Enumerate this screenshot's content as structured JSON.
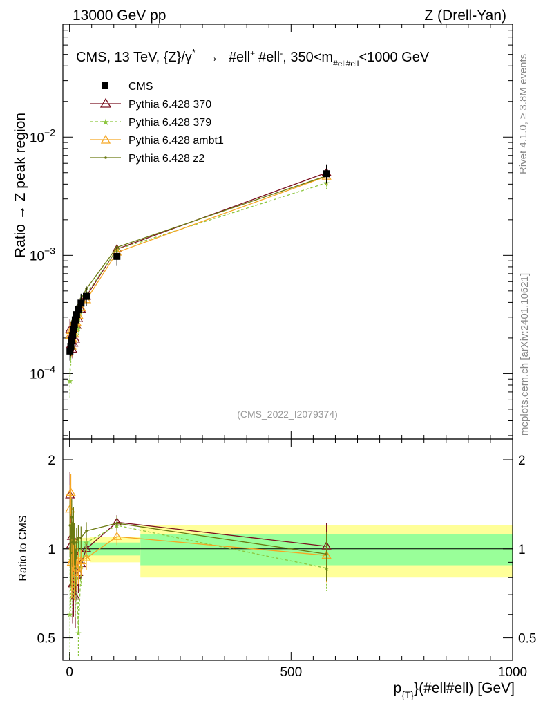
{
  "header": {
    "left": "13000 GeV pp",
    "right": "Z (Drell-Yan)"
  },
  "side": {
    "rivet": "Rivet 4.1.0, ≥ 3.8M events",
    "mcplots": "mcplots.cern.ch [arXiv:2401.10621]"
  },
  "chart_data": {
    "type": "scatter",
    "title": "CMS, 13 TeV, {Z}/γ* → #ell⁺ #ell⁻, 350<m#ell#ell<1000 GeV",
    "title_parts": {
      "lead": "CMS, 13 TeV, {Z}/γ",
      "star": "*",
      "arrow": "→",
      "lep1": "#ell",
      "plus": "+",
      "lep2": "#ell",
      "minus": "-",
      "cut_a": ", 350<m",
      "cut_sub": "#ell#ell",
      "cut_b": "<1000 GeV"
    },
    "analysis_id": "(CMS_2022_I2079374)",
    "ylabel": "Ratio → Z peak region",
    "ratio_ylabel": "Ratio to CMS",
    "xlabel": "p_{T}(#ell#ell) [GeV]",
    "xlabel_parts": {
      "p": "p",
      "sub": "{T}",
      "rest": "}(#ell#ell) [GeV]"
    },
    "xlim": [
      -15,
      1000
    ],
    "ylim": [
      2.8e-05,
      0.09
    ],
    "ratio_ylim": [
      0.42,
      2.35
    ],
    "x_ticks": [
      "0",
      "500",
      "1000"
    ],
    "y_ticks": [
      {
        "base": "10",
        "exp": "−4",
        "value": 0.0001
      },
      {
        "base": "10",
        "exp": "−3",
        "value": 0.001
      },
      {
        "base": "10",
        "exp": "−2",
        "value": 0.01
      }
    ],
    "ratio_ticks": [
      {
        "label": "0.5",
        "value": 0.5
      },
      {
        "label": "1",
        "value": 1
      },
      {
        "label": "2",
        "value": 2
      }
    ],
    "data": {
      "name": "CMS",
      "color": "#000000",
      "points": [
        {
          "x": 1,
          "y": 0.000155
        },
        {
          "x": 3,
          "y": 0.00017
        },
        {
          "x": 5,
          "y": 0.00019
        },
        {
          "x": 7,
          "y": 0.00021
        },
        {
          "x": 9,
          "y": 0.000235
        },
        {
          "x": 11,
          "y": 0.00026
        },
        {
          "x": 13,
          "y": 0.000285
        },
        {
          "x": 16,
          "y": 0.000315
        },
        {
          "x": 20,
          "y": 0.00035
        },
        {
          "x": 26,
          "y": 0.000395
        },
        {
          "x": 38,
          "y": 0.00045
        },
        {
          "x": 107,
          "y": 0.00098
        },
        {
          "x": 580,
          "y": 0.0049
        }
      ]
    },
    "band_edges": [
      0,
      2,
      4,
      6,
      8,
      10,
      12,
      14,
      18,
      22,
      30,
      46,
      160,
      1000
    ],
    "band_inner": [
      0.06,
      0.06,
      0.06,
      0.06,
      0.06,
      0.06,
      0.06,
      0.06,
      0.06,
      0.06,
      0.06,
      0.05,
      0.12
    ],
    "band_outer": [
      0.09,
      0.09,
      0.09,
      0.09,
      0.09,
      0.09,
      0.09,
      0.09,
      0.09,
      0.09,
      0.09,
      0.1,
      0.2
    ],
    "series": [
      {
        "name": "Pythia 6.428 370",
        "color": "#7b1020",
        "marker": "triangle-open",
        "dashed": false,
        "points": [
          {
            "x": 1,
            "y": 0.000235
          },
          {
            "x": 3,
            "y": 0.000175
          },
          {
            "x": 5,
            "y": 0.00021
          },
          {
            "x": 7,
            "y": 0.00016
          },
          {
            "x": 9,
            "y": 0.00018
          },
          {
            "x": 11,
            "y": 0.000255
          },
          {
            "x": 13,
            "y": 0.000195
          },
          {
            "x": 16,
            "y": 0.000255
          },
          {
            "x": 20,
            "y": 0.00029
          },
          {
            "x": 26,
            "y": 0.00035
          },
          {
            "x": 38,
            "y": 0.00045
          },
          {
            "x": 107,
            "y": 0.00113
          },
          {
            "x": 580,
            "y": 0.005
          }
        ],
        "ratio": [
          1.52,
          1.03,
          1.1,
          0.76,
          0.77,
          0.98,
          0.69,
          0.81,
          0.83,
          0.89,
          1.0,
          1.23,
          1.02
        ],
        "ratio_err": [
          0.3,
          0.25,
          0.22,
          0.2,
          0.18,
          0.16,
          0.15,
          0.14,
          0.12,
          0.1,
          0.08,
          0.07,
          0.2
        ]
      },
      {
        "name": "Pythia 6.428 379",
        "color": "#8cc63f",
        "marker": "star",
        "dashed": true,
        "points": [
          {
            "x": 1,
            "y": 8.7e-05
          },
          {
            "x": 3,
            "y": 0.000155
          },
          {
            "x": 5,
            "y": 0.00023
          },
          {
            "x": 7,
            "y": 0.00018
          },
          {
            "x": 9,
            "y": 0.00021
          },
          {
            "x": 11,
            "y": 0.000265
          },
          {
            "x": 13,
            "y": 0.000215
          },
          {
            "x": 16,
            "y": 0.00025
          },
          {
            "x": 20,
            "y": 0.00024
          },
          {
            "x": 26,
            "y": 0.000345
          },
          {
            "x": 38,
            "y": 0.00047
          },
          {
            "x": 107,
            "y": 0.00112
          },
          {
            "x": 580,
            "y": 0.0041
          }
        ],
        "ratio": [
          0.6,
          0.92,
          1.2,
          0.86,
          0.9,
          1.02,
          0.76,
          0.8,
          0.52,
          0.87,
          1.05,
          1.2,
          0.86
        ],
        "ratio_err": [
          0.35,
          0.3,
          0.26,
          0.24,
          0.22,
          0.2,
          0.18,
          0.16,
          0.14,
          0.12,
          0.1,
          0.08,
          0.14
        ]
      },
      {
        "name": "Pythia 6.428 ambt1",
        "color": "#f5a623",
        "marker": "triangle-open",
        "dashed": false,
        "points": [
          {
            "x": 1,
            "y": 0.00021
          },
          {
            "x": 3,
            "y": 0.00023
          },
          {
            "x": 5,
            "y": 0.00017
          },
          {
            "x": 7,
            "y": 0.000195
          },
          {
            "x": 9,
            "y": 0.00024
          },
          {
            "x": 11,
            "y": 0.000215
          },
          {
            "x": 13,
            "y": 0.000265
          },
          {
            "x": 16,
            "y": 0.00027
          },
          {
            "x": 20,
            "y": 0.00031
          },
          {
            "x": 26,
            "y": 0.00036
          },
          {
            "x": 38,
            "y": 0.00042
          },
          {
            "x": 107,
            "y": 0.00106
          },
          {
            "x": 580,
            "y": 0.00465
          }
        ],
        "ratio": [
          1.36,
          1.55,
          0.9,
          0.92,
          1.02,
          0.83,
          0.93,
          0.86,
          0.88,
          0.91,
          0.93,
          1.1,
          0.95
        ],
        "ratio_err": [
          0.28,
          0.24,
          0.22,
          0.2,
          0.18,
          0.16,
          0.15,
          0.14,
          0.12,
          0.1,
          0.08,
          0.07,
          0.18
        ]
      },
      {
        "name": "Pythia 6.428 z2",
        "color": "#6b7a12",
        "marker": "dot",
        "dashed": false,
        "points": [
          {
            "x": 1,
            "y": 0.000185
          },
          {
            "x": 3,
            "y": 0.000165
          },
          {
            "x": 5,
            "y": 0.000245
          },
          {
            "x": 7,
            "y": 0.00022
          },
          {
            "x": 9,
            "y": 0.000285
          },
          {
            "x": 11,
            "y": 0.00027
          },
          {
            "x": 13,
            "y": 0.000245
          },
          {
            "x": 16,
            "y": 0.00033
          },
          {
            "x": 20,
            "y": 0.00038
          },
          {
            "x": 26,
            "y": 0.00043
          },
          {
            "x": 38,
            "y": 0.00052
          },
          {
            "x": 107,
            "y": 0.00117
          },
          {
            "x": 580,
            "y": 0.0047
          }
        ],
        "ratio": [
          1.2,
          0.97,
          1.28,
          1.05,
          1.21,
          1.04,
          0.86,
          1.05,
          1.09,
          1.09,
          1.15,
          1.22,
          0.96
        ],
        "ratio_err": [
          0.26,
          0.22,
          0.2,
          0.18,
          0.17,
          0.16,
          0.14,
          0.13,
          0.11,
          0.1,
          0.08,
          0.07,
          0.18
        ]
      }
    ]
  }
}
